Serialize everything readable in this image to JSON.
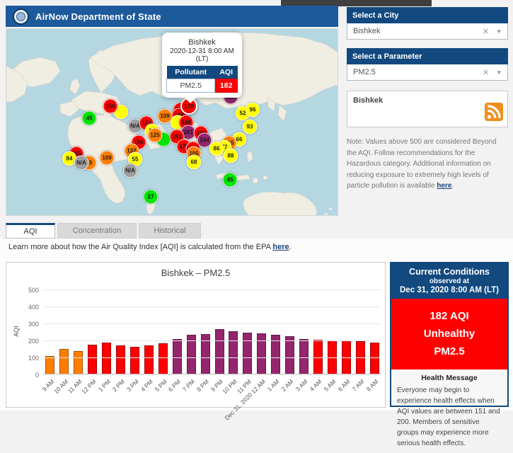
{
  "header": {
    "title": "AirNow Department of State"
  },
  "colors": {
    "aqi": {
      "green": "#00e400",
      "yellow": "#ffff00",
      "orange": "#ff7e00",
      "red": "#ff0000",
      "purple": "#93266d",
      "gray": "#9e9e9e"
    },
    "header_blue": "#1d5a9b",
    "panel_blue": "#12497f"
  },
  "map": {
    "popup": {
      "city": "Bishkek",
      "datetime": "2020-12-31 8:00 AM",
      "tz": "(LT)",
      "col_pollutant": "Pollutant",
      "col_aqi": "AQI",
      "pollutant": "PM2.5",
      "aqi": "182"
    },
    "markers": [
      {
        "x": 162,
        "y": 117,
        "v": "",
        "c": "yellow"
      },
      {
        "x": 147,
        "y": 109,
        "v": "156",
        "c": "red"
      },
      {
        "x": 117,
        "y": 126,
        "v": "45",
        "c": "green"
      },
      {
        "x": 224,
        "y": 123,
        "v": "109",
        "c": "orange"
      },
      {
        "x": 182,
        "y": 137,
        "v": "N/A",
        "c": "gray"
      },
      {
        "x": 198,
        "y": 133,
        "v": "173",
        "c": "red"
      },
      {
        "x": 206,
        "y": 144,
        "v": "93",
        "c": "yellow"
      },
      {
        "x": 222,
        "y": 156,
        "v": "",
        "c": "green"
      },
      {
        "x": 210,
        "y": 150,
        "v": "125",
        "c": "orange"
      },
      {
        "x": 187,
        "y": 160,
        "v": "156",
        "c": "red"
      },
      {
        "x": 177,
        "y": 172,
        "v": "132",
        "c": "orange"
      },
      {
        "x": 99,
        "y": 176,
        "v": "155",
        "c": "red"
      },
      {
        "x": 89,
        "y": 183,
        "v": "84",
        "c": "yellow"
      },
      {
        "x": 117,
        "y": 189,
        "v": "15",
        "c": "orange"
      },
      {
        "x": 106,
        "y": 189,
        "v": "N/A",
        "c": "gray"
      },
      {
        "x": 142,
        "y": 182,
        "v": "109",
        "c": "orange"
      },
      {
        "x": 182,
        "y": 184,
        "v": "55",
        "c": "yellow"
      },
      {
        "x": 175,
        "y": 200,
        "v": "N/A",
        "c": "gray"
      },
      {
        "x": 204,
        "y": 237,
        "v": "27",
        "c": "green"
      },
      {
        "x": 316,
        "y": 213,
        "v": "45",
        "c": "green"
      },
      {
        "x": 246,
        "y": 114,
        "v": "160",
        "c": "red"
      },
      {
        "x": 244,
        "y": 122,
        "v": "183",
        "c": "red"
      },
      {
        "x": 242,
        "y": 132,
        "v": "",
        "c": "yellow"
      },
      {
        "x": 254,
        "y": 132,
        "v": "148",
        "c": "red"
      },
      {
        "x": 257,
        "y": 146,
        "v": "281",
        "c": "purple"
      },
      {
        "x": 275,
        "y": 147,
        "v": "170",
        "c": "red"
      },
      {
        "x": 280,
        "y": 157,
        "v": "244",
        "c": "purple"
      },
      {
        "x": 241,
        "y": 152,
        "v": "161",
        "c": "red"
      },
      {
        "x": 251,
        "y": 166,
        "v": "178",
        "c": "red"
      },
      {
        "x": 264,
        "y": 169,
        "v": "182",
        "c": "red"
      },
      {
        "x": 265,
        "y": 176,
        "v": "105",
        "c": "orange"
      },
      {
        "x": 265,
        "y": 188,
        "v": "68",
        "c": "yellow"
      },
      {
        "x": 317,
        "y": 96,
        "v": "325",
        "c": "purple"
      },
      {
        "x": 334,
        "y": 119,
        "v": "52",
        "c": "yellow"
      },
      {
        "x": 348,
        "y": 114,
        "v": "96",
        "c": "yellow"
      },
      {
        "x": 344,
        "y": 138,
        "v": "93",
        "c": "yellow"
      },
      {
        "x": 329,
        "y": 156,
        "v": "66",
        "c": "yellow"
      },
      {
        "x": 315,
        "y": 161,
        "v": "115",
        "c": "orange"
      },
      {
        "x": 308,
        "y": 167,
        "v": "77",
        "c": "yellow"
      },
      {
        "x": 297,
        "y": 169,
        "v": "86",
        "c": "yellow"
      },
      {
        "x": 317,
        "y": 179,
        "v": "88",
        "c": "yellow"
      },
      {
        "x": 258,
        "y": 109,
        "v": "178",
        "c": "red",
        "selected": true
      }
    ]
  },
  "sidebar": {
    "city_panel": {
      "title": "Select a City",
      "value": "Bishkek"
    },
    "parameter_panel": {
      "title": "Select a Parameter",
      "value": "PM2.5"
    },
    "feed_box": {
      "text": "Bishkek"
    },
    "note": {
      "pre": "Note: Values above 500 are considered Beyond the AQI. Follow recommendations for the Hazardous category. Additional information on reducing exposure to extremely high levels of particle pollution is available ",
      "link": "here",
      "post": "."
    }
  },
  "tabs": [
    {
      "label": "AQI"
    },
    {
      "label": "Concentration"
    },
    {
      "label": "Historical"
    }
  ],
  "learn_more": {
    "pre": "Learn more about how the Air Quality Index [AQI] is calculated from the EPA ",
    "link": "here",
    "post": "."
  },
  "chart_data": {
    "type": "bar",
    "title": "Bishkek – PM2.5",
    "xlabel": "",
    "ylabel": "AQI",
    "ylim": [
      0,
      500
    ],
    "yticks": [
      0,
      100,
      200,
      300,
      400,
      500
    ],
    "grid": true,
    "legend": "none",
    "categories": [
      "9 AM",
      "10 AM",
      "11 AM",
      "12 PM",
      "1 PM",
      "2 PM",
      "3 PM",
      "4 PM",
      "5 PM",
      "6 PM",
      "7 PM",
      "8 PM",
      "9 PM",
      "10 PM",
      "11 PM",
      "Dec 31, 2020 12 AM",
      "1 AM",
      "2 AM",
      "3 AM",
      "4 AM",
      "5 AM",
      "6 AM",
      "7 AM",
      "8 AM"
    ],
    "values": [
      105,
      145,
      135,
      172,
      183,
      168,
      160,
      166,
      180,
      205,
      228,
      232,
      262,
      248,
      240,
      238,
      230,
      222,
      205,
      198,
      196,
      194,
      192,
      182
    ],
    "bar_colors": [
      "orange",
      "orange",
      "orange",
      "red",
      "red",
      "red",
      "red",
      "red",
      "red",
      "purple",
      "purple",
      "purple",
      "purple",
      "purple",
      "purple",
      "purple",
      "purple",
      "purple",
      "purple",
      "red",
      "red",
      "red",
      "red",
      "red"
    ]
  },
  "current_conditions": {
    "title": "Current Conditions",
    "subtitle": "observed at",
    "datetime": "Dec 31, 2020 8:00 AM (LT)",
    "aqi_line": "182 AQI",
    "category": "Unhealthy",
    "parameter": "PM2.5",
    "health_title": "Health Message",
    "health_text": "Everyone may begin to experience health effects when AQI values are between 151 and 200. Members of sensitive groups may experience more serious health effects."
  }
}
